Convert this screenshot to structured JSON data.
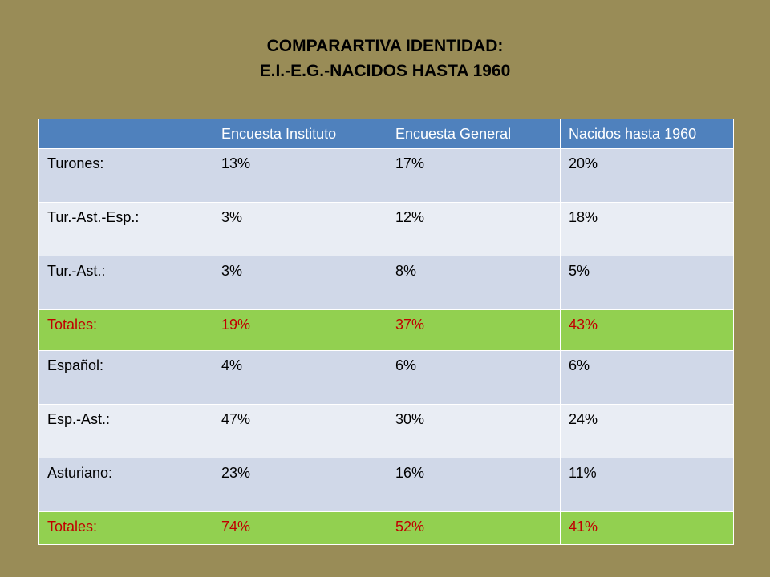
{
  "title": {
    "line1": "COMPARARTIVA IDENTIDAD:",
    "line2": "E.I.-E.G.-NACIDOS HASTA 1960"
  },
  "table": {
    "headers": [
      "",
      "Encuesta Instituto",
      "Encuesta General",
      "Nacidos hasta 1960"
    ],
    "rows": [
      {
        "cells": [
          "Turones:",
          "13%",
          "17%",
          "20%"
        ]
      },
      {
        "cells": [
          "Tur.-Ast.-Esp.:",
          "3%",
          "12%",
          "18%"
        ]
      },
      {
        "cells": [
          "Tur.-Ast.:",
          "3%",
          "8%",
          "5%"
        ]
      },
      {
        "cells": [
          "Totales:",
          "19%",
          "37%",
          "43%"
        ]
      },
      {
        "cells": [
          "Español:",
          "4%",
          "6%",
          "6%"
        ]
      },
      {
        "cells": [
          "Esp.-Ast.:",
          "47%",
          "30%",
          "24%"
        ]
      },
      {
        "cells": [
          "Asturiano:",
          "23%",
          "16%",
          "11%"
        ]
      },
      {
        "cells": [
          "Totales:",
          "74%",
          "52%",
          "41%"
        ]
      }
    ]
  },
  "colors": {
    "background": "#998c57",
    "header": "#4f81bd",
    "row_odd": "#d0d8e8",
    "row_even": "#e9edf4",
    "total_row": "#92d050",
    "total_text": "#c00000"
  }
}
